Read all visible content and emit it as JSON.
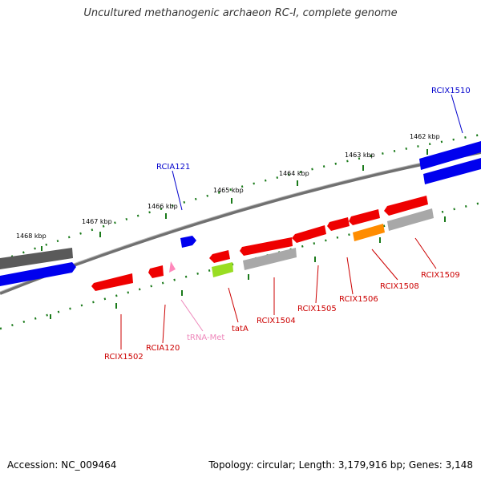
{
  "title": "Uncultured methanogenic archaeon RC-I, complete genome",
  "footer": {
    "accession": "Accession: NC_009464",
    "summary": "Topology: circular; Length: 3,179,916 bp; Genes: 3,148"
  },
  "colors": {
    "backbone": "#808080",
    "tick": "#1a7a1a",
    "red_gene": "#ff0000",
    "blue_gene": "#0000ff",
    "gray_gene": "#a0a0a0",
    "dark_gene": "#606060",
    "orange_gene": "#ff8c00",
    "green_gene": "#99dd22",
    "pink_gene": "#ff99cc",
    "red_label": "#cc0000",
    "blue_label": "#0000cc",
    "pink_label": "#ee88bb"
  },
  "kbp_labels": [
    "1468 kbp",
    "1467 kbp",
    "1466 kbp",
    "1465 kbp",
    "1464 kbp",
    "1463 kbp",
    "1462 kbp"
  ],
  "gene_labels": {
    "rcix1510": "RCIX1510",
    "rcia121": "RCIA121",
    "rcix1502": "RCIX1502",
    "rcia120": "RCIA120",
    "trna_met": "tRNA-Met",
    "tata": "tatA",
    "rcix1504": "RCIX1504",
    "rcix1505": "RCIX1505",
    "rcix1506": "RCIX1506",
    "rcix1508": "RCIX1508",
    "rcix1509": "RCIX1509"
  }
}
